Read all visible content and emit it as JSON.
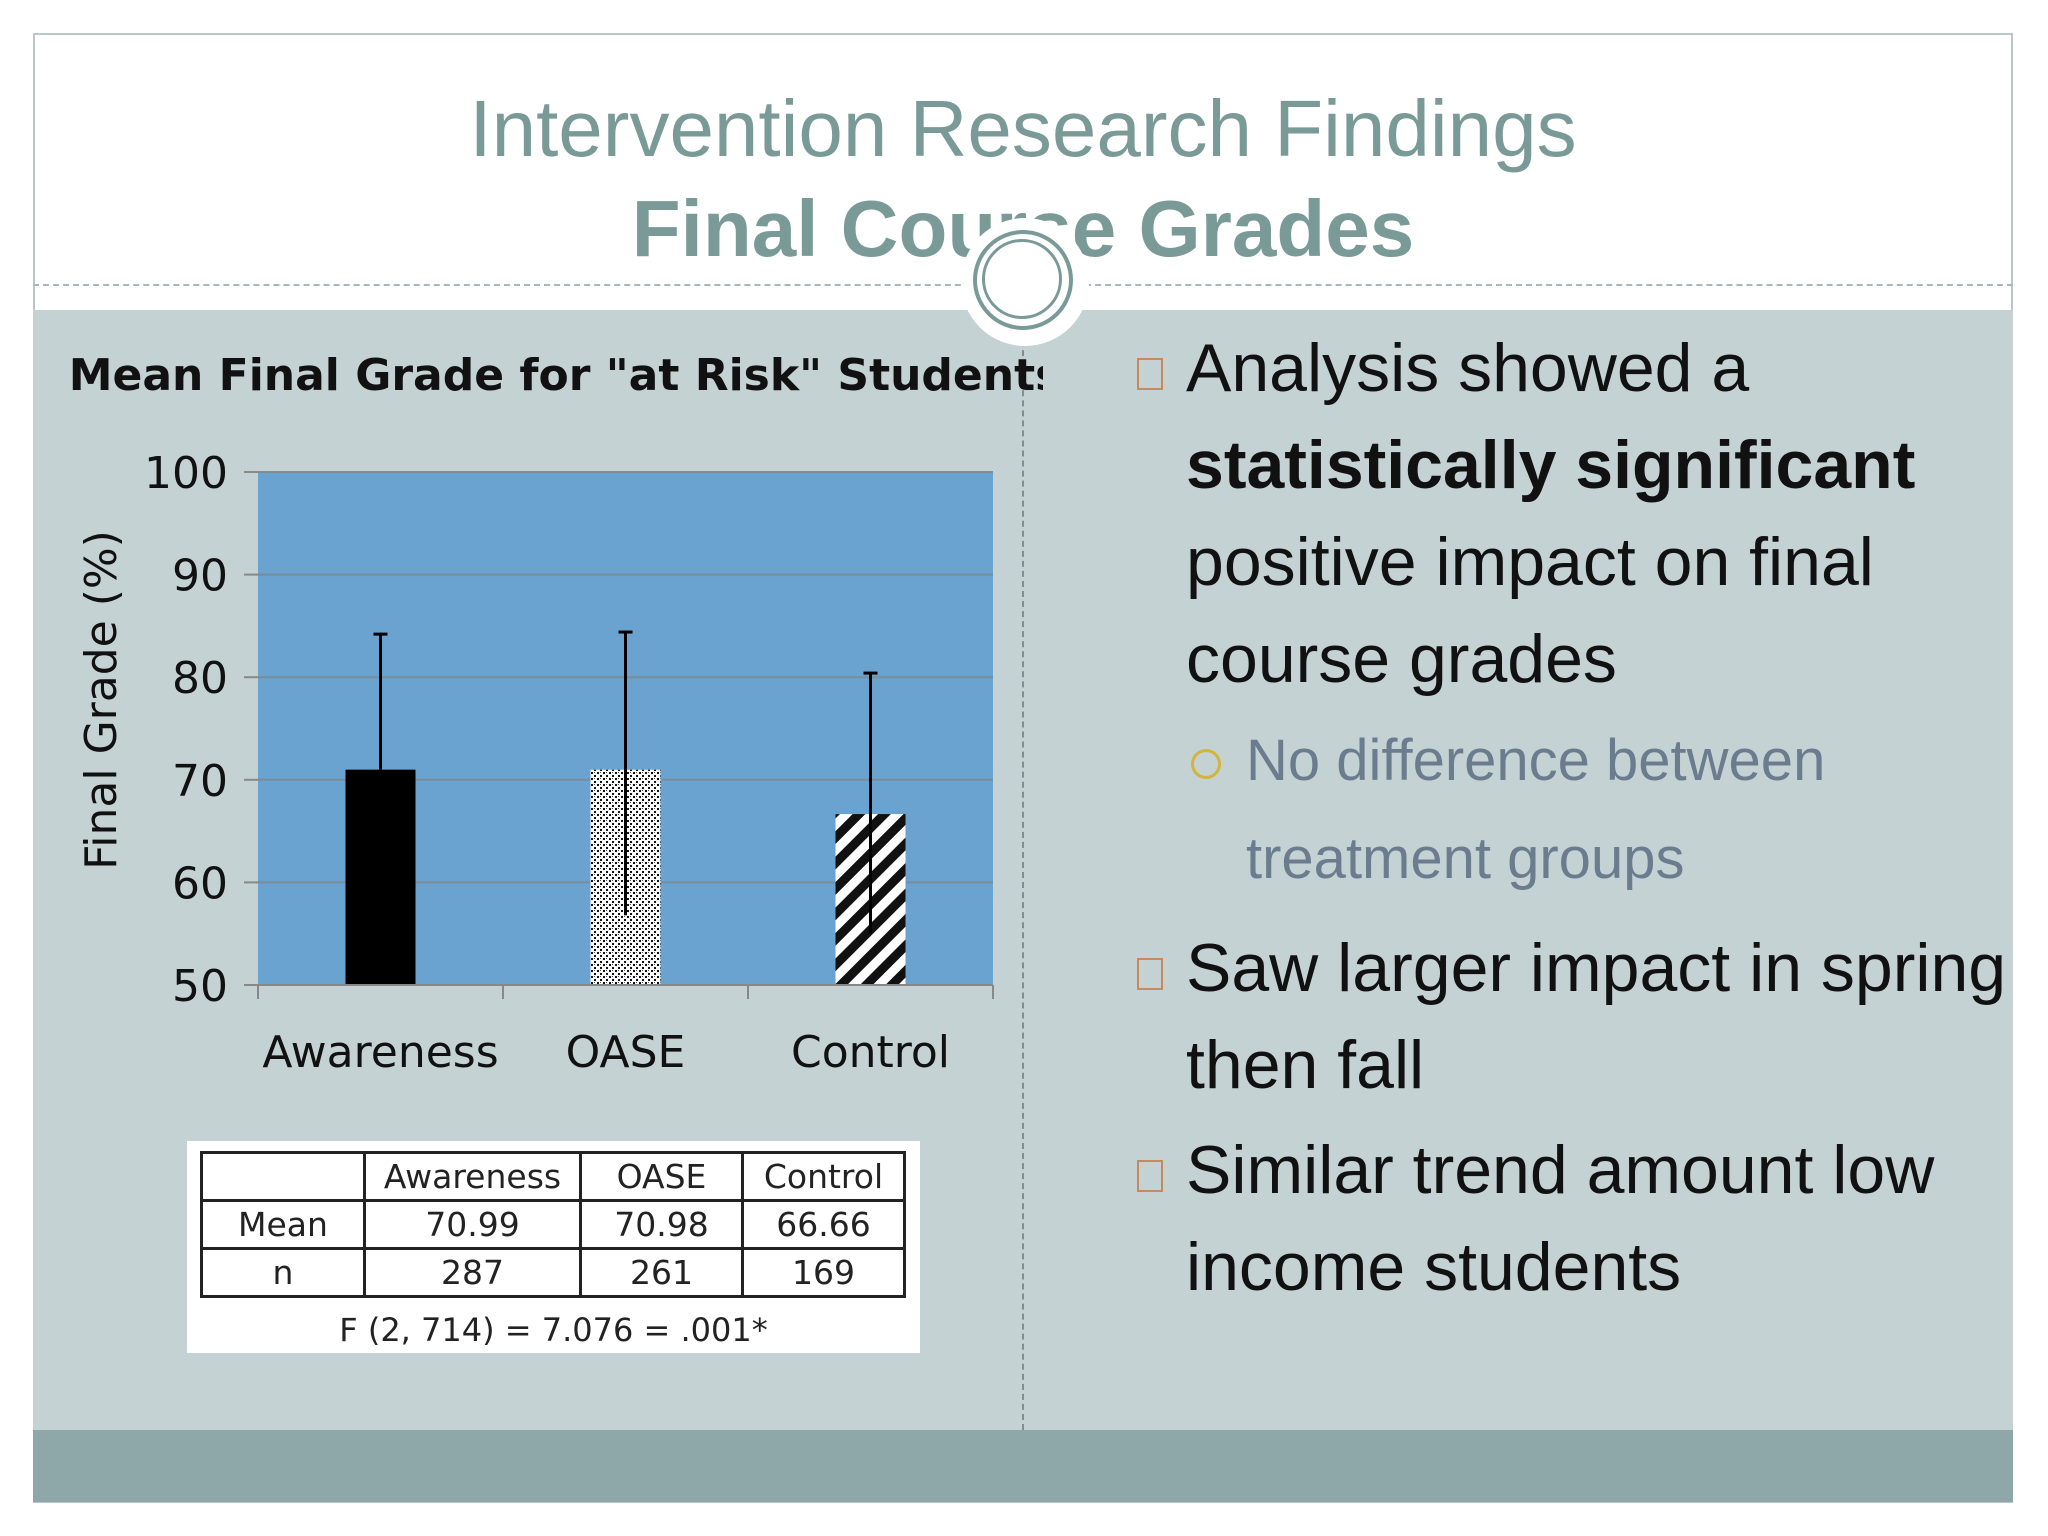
{
  "slide": {
    "title_line1": "Intervention Research Findings",
    "title_line2": "Final Course Grades"
  },
  "chart_data": {
    "type": "bar",
    "title": "Mean Final Grade for \"at Risk\" Students",
    "xlabel": "",
    "ylabel": "Final Grade (%)",
    "categories": [
      "Awareness",
      "OASE",
      "Control"
    ],
    "values": [
      70.99,
      70.98,
      66.66
    ],
    "error_bar_upper": [
      84.2,
      84.4,
      80.4
    ],
    "error_bar_lower": [
      70.99,
      56.8,
      55.0
    ],
    "ylim": [
      50,
      100
    ],
    "yticks": [
      50,
      60,
      70,
      80,
      90,
      100
    ],
    "grid": true,
    "plot_background": "#6aa2d0",
    "bar_fills": [
      "solid-black",
      "dotted",
      "diagonal-stripes"
    ]
  },
  "stats_table": {
    "headers": [
      "",
      "Awareness",
      "OASE",
      "Control"
    ],
    "rows": [
      [
        "Mean",
        "70.99",
        "70.98",
        "66.66"
      ],
      [
        "n",
        "287",
        "261",
        "169"
      ]
    ],
    "f_stat": "F (2, 714) = 7.076 = .001*"
  },
  "bullets": {
    "b1_prefix": "Analysis showed a",
    "b1_bold": "statistically significant",
    "b1_rest": "positive impact on final course grades",
    "sub1": "No difference between treatment groups",
    "b2": "Saw larger impact in spring then fall",
    "b3": "Similar trend amount low income students"
  },
  "colors": {
    "title": "#7a9a98",
    "content_bg": "#c4d2d4",
    "footer_band": "#8ea8aa",
    "bullet_marker": "#c8895e",
    "sub_marker": "#d4b43c",
    "sub_text": "#6b7c8f"
  }
}
